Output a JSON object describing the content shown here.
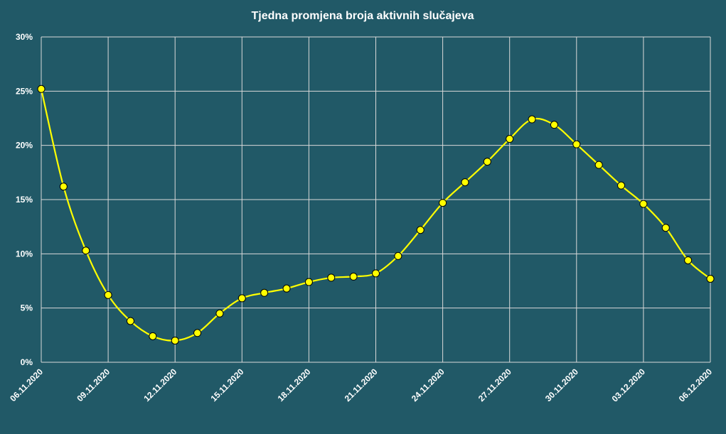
{
  "colors": {
    "background": "#215967",
    "line": "#ffff00",
    "grid": "#d9d9d9",
    "text": "#ffffff",
    "marker_stroke": "#000000"
  },
  "chart_data": {
    "type": "line",
    "title": "Tjedna promjena broja aktivnih slučajeva",
    "xlabel": "",
    "ylabel": "",
    "ylim": [
      0,
      30
    ],
    "y_unit": "%",
    "y_ticks": [
      0,
      5,
      10,
      15,
      20,
      25,
      30
    ],
    "y_tick_labels": [
      "0%",
      "5%",
      "10%",
      "15%",
      "20%",
      "25%",
      "30%"
    ],
    "x_tick_labels": [
      "06.11.2020",
      "09.11.2020",
      "12.11.2020",
      "15.11.2020",
      "18.11.2020",
      "21.11.2020",
      "24.11.2020",
      "27.11.2020",
      "30.11.2020",
      "03.12.2020",
      "06.12.2020"
    ],
    "x": [
      "06.11.2020",
      "07.11.2020",
      "08.11.2020",
      "09.11.2020",
      "10.11.2020",
      "11.11.2020",
      "12.11.2020",
      "13.11.2020",
      "14.11.2020",
      "15.11.2020",
      "16.11.2020",
      "17.11.2020",
      "18.11.2020",
      "19.11.2020",
      "20.11.2020",
      "21.11.2020",
      "22.11.2020",
      "23.11.2020",
      "24.11.2020",
      "25.11.2020",
      "26.11.2020",
      "27.11.2020",
      "28.11.2020",
      "29.11.2020",
      "30.11.2020",
      "01.12.2020",
      "02.12.2020",
      "03.12.2020",
      "04.12.2020",
      "05.12.2020",
      "06.12.2020"
    ],
    "series": [
      {
        "values": [
          25.2,
          16.2,
          10.3,
          6.2,
          3.8,
          2.4,
          2.0,
          2.7,
          4.5,
          5.9,
          6.4,
          6.8,
          7.4,
          7.8,
          7.9,
          8.2,
          9.8,
          12.2,
          14.7,
          16.6,
          18.5,
          20.6,
          22.4,
          21.9,
          20.1,
          18.2,
          16.3,
          14.6,
          12.4,
          9.4,
          7.7
        ]
      }
    ],
    "grid": true,
    "legend": "none"
  }
}
